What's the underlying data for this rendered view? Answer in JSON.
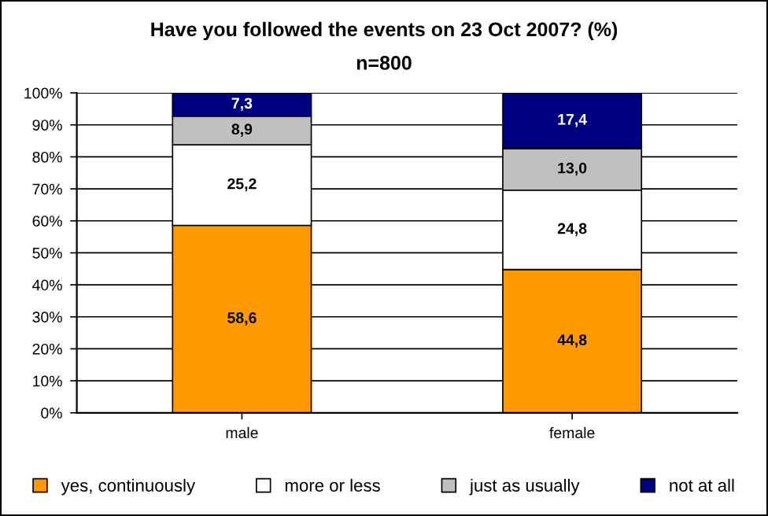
{
  "chart_data": {
    "type": "bar",
    "stacked": true,
    "title": "Have you followed the events on 23 Oct 2007? (%)",
    "subtitle": "n=800",
    "categories": [
      "male",
      "female"
    ],
    "series": [
      {
        "name": "yes, continuously",
        "color": "#ff9900",
        "values": [
          58.6,
          44.8
        ],
        "value_labels": [
          "58,6",
          "44,8"
        ]
      },
      {
        "name": "more or less",
        "color": "#ffffff",
        "values": [
          25.2,
          24.8
        ],
        "value_labels": [
          "25,2",
          "24,8"
        ]
      },
      {
        "name": "just as usually",
        "color": "#c0c0c0",
        "values": [
          8.9,
          13.0
        ],
        "value_labels": [
          "8,9",
          "13,0"
        ]
      },
      {
        "name": "not at all",
        "color": "#000080",
        "values": [
          7.3,
          17.4
        ],
        "value_labels": [
          "7,3",
          "17,4"
        ]
      }
    ],
    "ylim": [
      0,
      100
    ],
    "yticks": [
      {
        "value": 0,
        "label": "0%"
      },
      {
        "value": 10,
        "label": "10%"
      },
      {
        "value": 20,
        "label": "20%"
      },
      {
        "value": 30,
        "label": "30%"
      },
      {
        "value": 40,
        "label": "40%"
      },
      {
        "value": 50,
        "label": "50%"
      },
      {
        "value": 60,
        "label": "60%"
      },
      {
        "value": 70,
        "label": "70%"
      },
      {
        "value": 80,
        "label": "80%"
      },
      {
        "value": 90,
        "label": "90%"
      },
      {
        "value": 100,
        "label": "100%"
      }
    ],
    "grid": "y",
    "legend": "bottom"
  }
}
